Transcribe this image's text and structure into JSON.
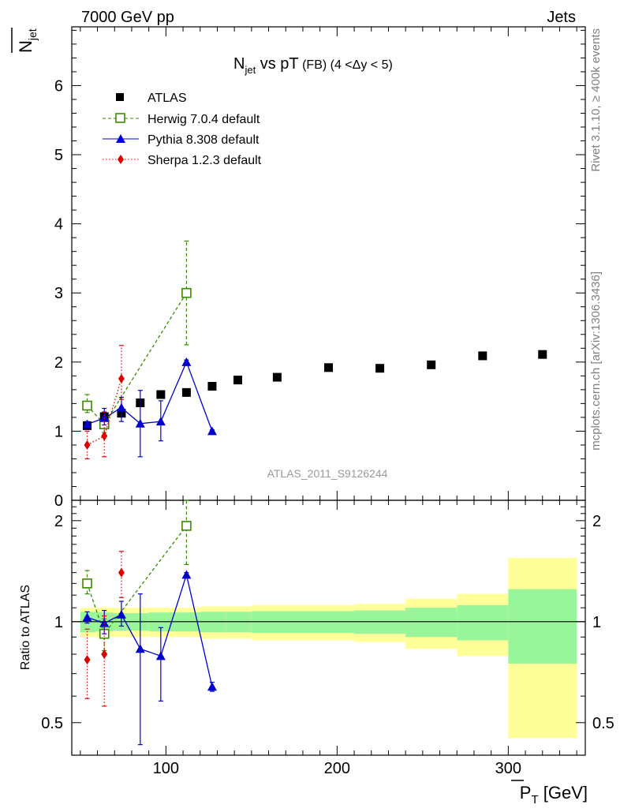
{
  "header": {
    "left": "7000 GeV pp",
    "right": "Jets"
  },
  "side_labels": {
    "rivet": "Rivet 3.1.10, ≥ 400k events",
    "mcplots": "mcplots.cern.ch [arXiv:1306.3436]"
  },
  "watermark": "ATLAS_2011_S9126244",
  "title": {
    "main": "N",
    "main_sub": "jet",
    "main_rest": " vs pT",
    "qualifier": " (FB) (4 <",
    "delta": "Δ",
    "qualifier_end": "y < 5)"
  },
  "ylabel_top": {
    "base": "N",
    "sub": "jet"
  },
  "ylabel_bottom": "Ratio to ATLAS",
  "xlabel": {
    "base": "P",
    "sub": "T",
    "unit": " [GeV]"
  },
  "colors": {
    "atlas": "#000000",
    "herwig": "#3a8a00",
    "pythia": "#0000cc",
    "sherpa": "#e00000",
    "band_inner": "#99f599",
    "band_outer": "#ffff99"
  },
  "chart_data": [
    {
      "type": "scatter",
      "panel": "main",
      "xlim": [
        45,
        345
      ],
      "ylim": [
        0,
        6.85
      ],
      "yticks": [
        0,
        1,
        2,
        3,
        4,
        5,
        6
      ],
      "legend_position": "top-left",
      "series": [
        {
          "name": "ATLAS",
          "marker": "square-filled",
          "x": [
            54,
            64,
            74,
            85,
            97,
            112,
            127,
            142,
            165,
            195,
            225,
            255,
            285,
            320
          ],
          "y": [
            1.08,
            1.21,
            1.26,
            1.41,
            1.53,
            1.56,
            1.65,
            1.74,
            1.78,
            1.92,
            1.91,
            1.96,
            2.09,
            2.11
          ],
          "yerr": [
            0.03,
            0.03,
            0.03,
            0.03,
            0.03,
            0.03,
            0.03,
            0.03,
            0.03,
            0.03,
            0.03,
            0.04,
            0.04,
            0.05
          ]
        },
        {
          "name": "Herwig 7.0.4 default",
          "marker": "square-open",
          "line": "dashed",
          "x": [
            54,
            64,
            112
          ],
          "y": [
            1.37,
            1.1,
            3.0
          ],
          "yerr_low": [
            0.1,
            0.12,
            0.75
          ],
          "yerr_high": [
            0.16,
            0.1,
            0.75
          ]
        },
        {
          "name": "Pythia 8.308 default",
          "marker": "triangle-filled",
          "line": "solid",
          "x": [
            54,
            64,
            74,
            85,
            97,
            112,
            127
          ],
          "y": [
            1.1,
            1.19,
            1.34,
            1.11,
            1.14,
            2.0,
            1.0
          ],
          "yerr_low": [
            0.04,
            0.1,
            0.2,
            0.48,
            0.28,
            0.03,
            0.02
          ],
          "yerr_high": [
            0.04,
            0.14,
            0.15,
            0.48,
            0.3,
            0.03,
            0.02
          ]
        },
        {
          "name": "Sherpa 1.2.3 default",
          "marker": "diamond-filled",
          "line": "dotted",
          "x": [
            54,
            64,
            74
          ],
          "y": [
            0.8,
            0.93,
            1.76
          ],
          "yerr_low": [
            0.2,
            0.3,
            0.3
          ],
          "yerr_high": [
            0.2,
            0.35,
            0.48
          ]
        }
      ]
    },
    {
      "type": "scatter",
      "panel": "ratio",
      "xlim": [
        45,
        345
      ],
      "ylim": [
        0.4,
        2.3
      ],
      "log_y": true,
      "yticks": [
        0.5,
        1,
        2
      ],
      "xticks": [
        100,
        200,
        300
      ],
      "bins": [
        50,
        59,
        69,
        80,
        90,
        105,
        120,
        135,
        150,
        180,
        210,
        240,
        270,
        300,
        340
      ],
      "band_inner": [
        0.07,
        0.065,
        0.06,
        0.06,
        0.065,
        0.065,
        0.07,
        0.07,
        0.075,
        0.075,
        0.08,
        0.1,
        0.12,
        0.25
      ],
      "band_outer": [
        0.1,
        0.1,
        0.1,
        0.1,
        0.1,
        0.1,
        0.11,
        0.11,
        0.12,
        0.12,
        0.13,
        0.17,
        0.21,
        0.55
      ],
      "series": [
        {
          "name": "Herwig 7.0.4 default",
          "x": [
            54,
            64,
            112
          ],
          "y": [
            1.3,
            0.92,
            1.93
          ],
          "yerr_low": [
            0.09,
            0.1,
            0.45
          ],
          "yerr_high": [
            0.12,
            0.1,
            0.45
          ]
        },
        {
          "name": "Pythia 8.308 default",
          "x": [
            54,
            64,
            74,
            85,
            97,
            112,
            127
          ],
          "y": [
            1.03,
            0.99,
            1.05,
            0.83,
            0.79,
            1.38,
            0.64
          ],
          "yerr_low": [
            0.04,
            0.07,
            0.08,
            0.4,
            0.21,
            0.02,
            0.02
          ],
          "yerr_high": [
            0.04,
            0.09,
            0.1,
            0.38,
            0.17,
            0.02,
            0.02
          ]
        },
        {
          "name": "Sherpa 1.2.3 default",
          "x": [
            54,
            64,
            74
          ],
          "y": [
            0.77,
            0.8,
            1.4
          ],
          "yerr_low": [
            0.18,
            0.24,
            0.22
          ],
          "yerr_high": [
            0.18,
            0.24,
            0.22
          ]
        }
      ]
    }
  ]
}
